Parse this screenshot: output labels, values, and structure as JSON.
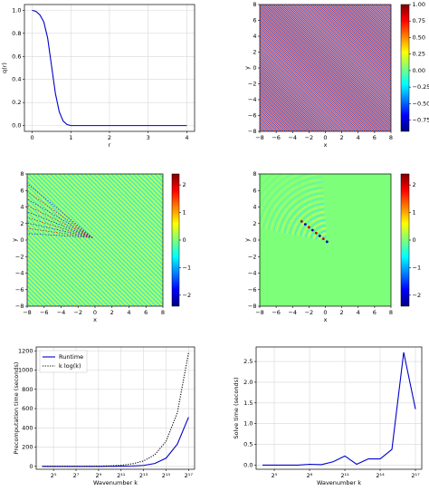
{
  "chart_data": [
    {
      "type": "line",
      "xlabel": "r",
      "ylabel": "q(r)",
      "x": [
        0,
        0.1,
        0.2,
        0.3,
        0.4,
        0.5,
        0.6,
        0.7,
        0.8,
        0.9,
        1.0,
        1.2,
        1.5,
        2,
        3,
        4
      ],
      "values": [
        1.0,
        0.99,
        0.96,
        0.9,
        0.76,
        0.52,
        0.28,
        0.12,
        0.04,
        0.01,
        0.0,
        0.0,
        0.0,
        0.0,
        0.0,
        0.0
      ],
      "color": "#0000cc",
      "xlim": [
        -0.2,
        4.2
      ],
      "ylim": [
        -0.05,
        1.05
      ],
      "xticks": [
        0,
        1,
        2,
        3,
        4
      ],
      "yticks": [
        {
          "value": 0,
          "label": "0.0"
        },
        0.2,
        0.4,
        0.6,
        0.8,
        {
          "value": 1,
          "label": "1.0"
        }
      ],
      "grid": true
    },
    {
      "type": "heatmap",
      "xlabel": "x",
      "ylabel": "y",
      "colormap": "jet",
      "xlim": [
        -8,
        8
      ],
      "ylim": [
        -8,
        8
      ],
      "xticks": [
        {
          "value": -8,
          "label": "−8"
        },
        {
          "value": -6,
          "label": "−6"
        },
        {
          "value": -4,
          "label": "−4"
        },
        {
          "value": -2,
          "label": "−2"
        },
        0,
        2,
        4,
        6,
        8
      ],
      "yticks": [
        {
          "value": -8,
          "label": "−8"
        },
        {
          "value": -6,
          "label": "−6"
        },
        {
          "value": -4,
          "label": "−4"
        },
        {
          "value": -2,
          "label": "−2"
        },
        0,
        2,
        4,
        6,
        8
      ],
      "clim": [
        -0.92,
        1.0
      ],
      "cticks": [
        {
          "value": -0.75,
          "label": "−0.75"
        },
        {
          "value": -0.5,
          "label": "−0.50"
        },
        {
          "value": -0.25,
          "label": "−0.25"
        },
        {
          "value": 0,
          "label": "0.00"
        },
        0.25,
        {
          "value": 0.5,
          "label": "0.50"
        },
        0.75,
        {
          "value": 1,
          "label": "1.00"
        }
      ]
    },
    {
      "type": "heatmap",
      "xlabel": "x",
      "ylabel": "y",
      "colormap": "jet",
      "xlim": [
        -8,
        8
      ],
      "ylim": [
        -8,
        8
      ],
      "xticks": [
        {
          "value": -8,
          "label": "−8"
        },
        {
          "value": -6,
          "label": "−6"
        },
        {
          "value": -4,
          "label": "−4"
        },
        {
          "value": -2,
          "label": "−2"
        },
        0,
        2,
        4,
        6,
        8
      ],
      "yticks": [
        {
          "value": -8,
          "label": "−8"
        },
        {
          "value": -6,
          "label": "−6"
        },
        {
          "value": -4,
          "label": "−4"
        },
        {
          "value": -2,
          "label": "−2"
        },
        0,
        2,
        4,
        6,
        8
      ],
      "clim": [
        -2.4,
        2.4
      ],
      "cticks": [
        {
          "value": -2,
          "label": "−2"
        },
        {
          "value": -1,
          "label": "−1"
        },
        0,
        1,
        2
      ]
    },
    {
      "type": "heatmap",
      "xlabel": "x",
      "ylabel": "y",
      "colormap": "jet",
      "xlim": [
        -8,
        8
      ],
      "ylim": [
        -8,
        8
      ],
      "xticks": [
        {
          "value": -8,
          "label": "−8"
        },
        {
          "value": -6,
          "label": "−6"
        },
        {
          "value": -4,
          "label": "−4"
        },
        {
          "value": -2,
          "label": "−2"
        },
        0,
        2,
        4,
        6,
        8
      ],
      "yticks": [
        {
          "value": -8,
          "label": "−8"
        },
        {
          "value": -6,
          "label": "−6"
        },
        {
          "value": -4,
          "label": "−4"
        },
        {
          "value": -2,
          "label": "−2"
        },
        0,
        2,
        4,
        6,
        8
      ],
      "clim": [
        -2.4,
        2.4
      ],
      "cticks": [
        {
          "value": -2,
          "label": "−2"
        },
        {
          "value": -1,
          "label": "−1"
        },
        0,
        1,
        2
      ]
    },
    {
      "type": "line",
      "xlabel": "Wavenumber k",
      "ylabel": "Precomputation time (seconds)",
      "xscale": "log2",
      "x": [
        16,
        32,
        64,
        128,
        256,
        512,
        1024,
        2048,
        4096,
        8192,
        16384,
        32768,
        65536,
        131072
      ],
      "series": [
        {
          "name": "Runtime",
          "color": "#0000cc",
          "linestyle": "solid",
          "values": [
            0,
            0,
            0,
            0,
            0,
            0,
            1,
            2,
            4,
            10,
            30,
            85,
            230,
            510
          ]
        },
        {
          "name": "k log(k)",
          "color": "#000000",
          "linestyle": "dotted",
          "values": [
            0,
            0,
            0,
            0,
            1,
            2,
            5,
            12,
            26,
            56,
            121,
            260,
            555,
            1180
          ]
        }
      ],
      "legend": "upper left",
      "xlim": [
        11,
        190000
      ],
      "ylim": [
        -30,
        1240
      ],
      "xticks": [
        {
          "value": 32,
          "label": "2⁵"
        },
        {
          "value": 128,
          "label": "2⁷"
        },
        {
          "value": 512,
          "label": "2⁹"
        },
        {
          "value": 2048,
          "label": "2¹¹"
        },
        {
          "value": 8192,
          "label": "2¹³"
        },
        {
          "value": 32768,
          "label": "2¹⁵"
        },
        {
          "value": 131072,
          "label": "2¹⁷"
        }
      ],
      "yticks": [
        0,
        200,
        400,
        600,
        800,
        1000,
        1200
      ],
      "grid": true
    },
    {
      "type": "line",
      "xlabel": "Wavenumber k",
      "ylabel": "Solve time (seconds)",
      "xscale": "log2",
      "x": [
        16,
        32,
        64,
        128,
        256,
        512,
        1024,
        2048,
        4096,
        8192,
        16384,
        32768,
        65536,
        131072
      ],
      "values": [
        0,
        0,
        0,
        0,
        0.02,
        0.01,
        0.08,
        0.22,
        0.02,
        0.15,
        0.15,
        0.38,
        2.72,
        1.35
      ],
      "color": "#0000cc",
      "xlim": [
        11,
        190000
      ],
      "ylim": [
        -0.1,
        2.85
      ],
      "xticks": [
        {
          "value": 32,
          "label": "2⁵"
        },
        {
          "value": 256,
          "label": "2⁸"
        },
        {
          "value": 2048,
          "label": "2¹¹"
        },
        {
          "value": 16384,
          "label": "2¹⁴"
        },
        {
          "value": 131072,
          "label": "2¹⁷"
        }
      ],
      "yticks": [
        {
          "value": 0,
          "label": "0.0"
        },
        0.5,
        {
          "value": 1,
          "label": "1.0"
        },
        1.5,
        {
          "value": 2,
          "label": "2.0"
        },
        2.5
      ],
      "grid": true
    }
  ]
}
